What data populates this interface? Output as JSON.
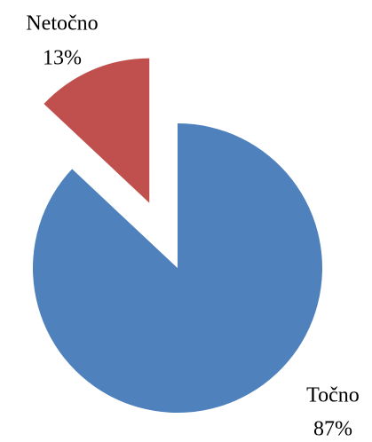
{
  "chart_data": {
    "type": "pie",
    "categories": [
      "Točno",
      "Netočno"
    ],
    "values": [
      87,
      13
    ],
    "value_labels": [
      "87%",
      "13%"
    ],
    "colors": [
      "#4f81bd",
      "#c0504d"
    ],
    "exploded": [
      false,
      true
    ]
  }
}
